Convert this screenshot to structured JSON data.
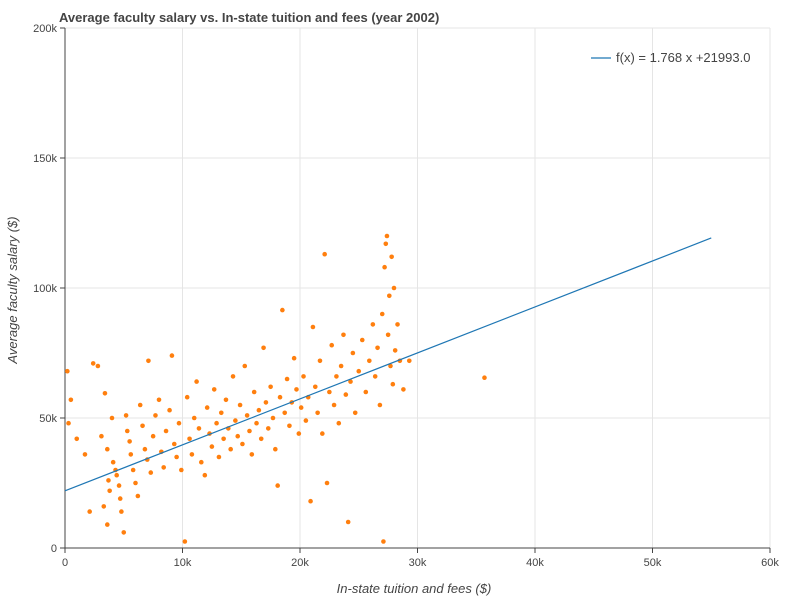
{
  "chart_data": {
    "type": "scatter",
    "title": "Average faculty salary vs. In-state tuition and fees (year 2002)",
    "xlabel": "In-state tuition and fees ($)",
    "ylabel": "Average faculty salary ($)",
    "xlim": [
      0,
      60000
    ],
    "ylim": [
      0,
      200000
    ],
    "x_ticks": [
      {
        "value": 0,
        "label": "0"
      },
      {
        "value": 10000,
        "label": "10k"
      },
      {
        "value": 20000,
        "label": "20k"
      },
      {
        "value": 30000,
        "label": "30k"
      },
      {
        "value": 40000,
        "label": "40k"
      },
      {
        "value": 50000,
        "label": "50k"
      },
      {
        "value": 60000,
        "label": "60k"
      }
    ],
    "y_ticks": [
      {
        "value": 0,
        "label": "0"
      },
      {
        "value": 50000,
        "label": "50k"
      },
      {
        "value": 100000,
        "label": "100k"
      },
      {
        "value": 150000,
        "label": "150k"
      },
      {
        "value": 200000,
        "label": "200k"
      }
    ],
    "grid": true,
    "legend_position": "top-right",
    "colors": {
      "points": "#ff7f0e",
      "fit_line": "#1f77b4"
    },
    "fit_line": {
      "label": "f(x) = 1.768 x +21993.0",
      "slope": 1.768,
      "intercept": 21993.0,
      "x_start": 0,
      "x_end": 55000
    },
    "points": [
      [
        200,
        68000
      ],
      [
        500,
        57000
      ],
      [
        300,
        48000
      ],
      [
        1000,
        42000
      ],
      [
        1700,
        36000
      ],
      [
        2100,
        14000
      ],
      [
        2400,
        71000
      ],
      [
        2800,
        70000
      ],
      [
        3100,
        43000
      ],
      [
        3400,
        59500
      ],
      [
        3600,
        38000
      ],
      [
        3700,
        26000
      ],
      [
        3800,
        22000
      ],
      [
        3300,
        16000
      ],
      [
        3600,
        9000
      ],
      [
        4000,
        50000
      ],
      [
        4100,
        33000
      ],
      [
        4300,
        30000
      ],
      [
        4400,
        28000
      ],
      [
        4600,
        24000
      ],
      [
        4700,
        19000
      ],
      [
        4800,
        14000
      ],
      [
        5000,
        6000
      ],
      [
        5200,
        51000
      ],
      [
        5300,
        45000
      ],
      [
        5500,
        41000
      ],
      [
        5600,
        36000
      ],
      [
        5800,
        30000
      ],
      [
        6000,
        25000
      ],
      [
        6200,
        20000
      ],
      [
        6400,
        55000
      ],
      [
        6600,
        47000
      ],
      [
        6800,
        38000
      ],
      [
        7000,
        34000
      ],
      [
        7100,
        72000
      ],
      [
        7300,
        29000
      ],
      [
        7500,
        43000
      ],
      [
        7700,
        51000
      ],
      [
        8000,
        57000
      ],
      [
        8200,
        37000
      ],
      [
        8400,
        31000
      ],
      [
        8600,
        45000
      ],
      [
        8900,
        53000
      ],
      [
        9100,
        74000
      ],
      [
        9300,
        40000
      ],
      [
        9500,
        35000
      ],
      [
        9700,
        48000
      ],
      [
        9900,
        30000
      ],
      [
        10200,
        2500
      ],
      [
        10400,
        58000
      ],
      [
        10600,
        42000
      ],
      [
        10800,
        36000
      ],
      [
        11000,
        50000
      ],
      [
        11200,
        64000
      ],
      [
        11400,
        46000
      ],
      [
        11600,
        33000
      ],
      [
        11900,
        28000
      ],
      [
        12100,
        54000
      ],
      [
        12300,
        44000
      ],
      [
        12500,
        39000
      ],
      [
        12700,
        61000
      ],
      [
        12900,
        48000
      ],
      [
        13100,
        35000
      ],
      [
        13300,
        52000
      ],
      [
        13500,
        42000
      ],
      [
        13700,
        57000
      ],
      [
        13900,
        46000
      ],
      [
        14100,
        38000
      ],
      [
        14300,
        66000
      ],
      [
        14500,
        49000
      ],
      [
        14700,
        43000
      ],
      [
        14900,
        55000
      ],
      [
        15100,
        40000
      ],
      [
        15300,
        70000
      ],
      [
        15500,
        51000
      ],
      [
        15700,
        45000
      ],
      [
        15900,
        36000
      ],
      [
        16100,
        60000
      ],
      [
        16300,
        48000
      ],
      [
        16500,
        53000
      ],
      [
        16700,
        42000
      ],
      [
        16900,
        77000
      ],
      [
        17100,
        56000
      ],
      [
        17300,
        46000
      ],
      [
        17500,
        62000
      ],
      [
        17700,
        50000
      ],
      [
        17900,
        38000
      ],
      [
        18100,
        24000
      ],
      [
        18300,
        58000
      ],
      [
        18500,
        91500
      ],
      [
        18700,
        52000
      ],
      [
        18900,
        65000
      ],
      [
        19100,
        47000
      ],
      [
        19300,
        56000
      ],
      [
        19500,
        73000
      ],
      [
        19700,
        61000
      ],
      [
        19900,
        44000
      ],
      [
        20100,
        54000
      ],
      [
        20300,
        66000
      ],
      [
        20500,
        49000
      ],
      [
        20700,
        58000
      ],
      [
        20900,
        18000
      ],
      [
        21100,
        85000
      ],
      [
        21300,
        62000
      ],
      [
        21500,
        52000
      ],
      [
        21700,
        72000
      ],
      [
        21900,
        44000
      ],
      [
        22100,
        113000
      ],
      [
        22300,
        25000
      ],
      [
        22500,
        60000
      ],
      [
        22700,
        78000
      ],
      [
        22900,
        55000
      ],
      [
        23100,
        66000
      ],
      [
        23300,
        48000
      ],
      [
        23500,
        70000
      ],
      [
        23700,
        82000
      ],
      [
        23900,
        59000
      ],
      [
        24100,
        10000
      ],
      [
        24300,
        64000
      ],
      [
        24500,
        75000
      ],
      [
        24700,
        52000
      ],
      [
        25000,
        68000
      ],
      [
        25300,
        80000
      ],
      [
        25600,
        60000
      ],
      [
        25900,
        72000
      ],
      [
        26200,
        86000
      ],
      [
        26400,
        66000
      ],
      [
        26600,
        77000
      ],
      [
        26800,
        55000
      ],
      [
        27000,
        90000
      ],
      [
        27100,
        2500
      ],
      [
        27200,
        108000
      ],
      [
        27300,
        117000
      ],
      [
        27400,
        120000
      ],
      [
        27500,
        82000
      ],
      [
        27600,
        97000
      ],
      [
        27700,
        70000
      ],
      [
        27800,
        112000
      ],
      [
        27900,
        63000
      ],
      [
        28000,
        100000
      ],
      [
        28100,
        76000
      ],
      [
        28300,
        86000
      ],
      [
        28500,
        72000
      ],
      [
        28800,
        61000
      ],
      [
        29300,
        72000
      ],
      [
        35700,
        65500
      ]
    ]
  }
}
